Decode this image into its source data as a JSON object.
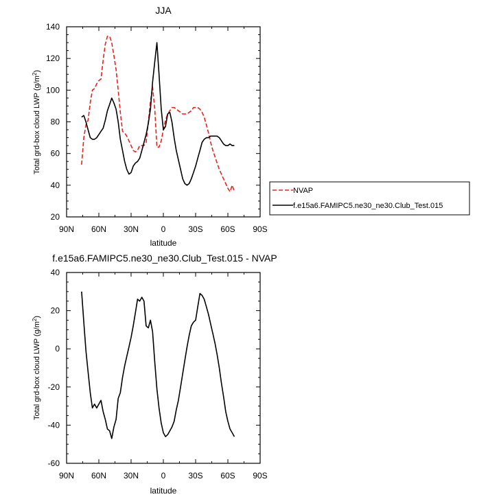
{
  "chart_data": [
    {
      "type": "line",
      "title": "JJA",
      "xlabel": "latitude",
      "ylabel_main": "Total grd-box cloud LWP (g/m",
      "ylabel_sup": "2",
      "ylabel_tail": ")",
      "xlim": [
        90,
        -90
      ],
      "ylim": [
        20,
        140
      ],
      "xticks": [
        90,
        60,
        30,
        0,
        -30,
        -60,
        -90
      ],
      "xtick_labels": [
        "90N",
        "60N",
        "30N",
        "0",
        "30S",
        "60S",
        "90S"
      ],
      "yticks": [
        20,
        40,
        60,
        80,
        100,
        120,
        140
      ],
      "ytick_labels": [
        "20",
        "40",
        "60",
        "80",
        "100",
        "120",
        "140"
      ],
      "legend_position": "right",
      "series": [
        {
          "name": "NVAP",
          "color": "#e8211c",
          "dash": "dashed",
          "x": [
            76,
            74,
            72,
            70,
            68,
            66,
            64,
            62,
            60,
            58,
            56,
            54,
            52,
            50,
            48,
            46,
            44,
            42,
            40,
            38,
            36,
            34,
            32,
            30,
            28,
            26,
            24,
            22,
            20,
            18,
            16,
            14,
            12,
            10,
            8,
            6,
            4,
            2,
            0,
            -2,
            -4,
            -6,
            -8,
            -10,
            -12,
            -14,
            -16,
            -18,
            -20,
            -22,
            -24,
            -26,
            -28,
            -30,
            -32,
            -34,
            -36,
            -38,
            -40,
            -42,
            -44,
            -46,
            -48,
            -50,
            -52,
            -54,
            -56,
            -58,
            -60,
            -62,
            -64,
            -66
          ],
          "y": [
            53,
            70,
            78,
            81,
            92,
            100,
            101,
            104,
            106,
            107,
            119,
            129,
            134,
            134,
            130,
            122,
            113,
            100,
            86,
            74,
            73,
            71,
            68,
            65,
            62,
            61,
            62,
            65,
            65,
            65,
            67,
            80,
            93,
            102,
            88,
            64,
            64,
            68,
            75,
            81,
            85,
            87,
            89,
            89,
            88,
            87,
            86,
            85,
            85,
            85,
            86,
            87,
            89,
            89,
            89,
            88,
            86,
            83,
            78,
            73,
            67,
            62,
            58,
            54,
            50,
            47,
            44,
            41,
            38,
            36,
            40,
            36
          ]
        },
        {
          "name": "f.e15a6.FAMIPC5.ne30_ne30.Club_Test.015",
          "color": "#000000",
          "dash": "solid",
          "x": [
            76,
            74,
            72,
            70,
            68,
            66,
            64,
            62,
            60,
            58,
            56,
            54,
            52,
            50,
            48,
            46,
            44,
            42,
            40,
            38,
            36,
            34,
            32,
            30,
            28,
            26,
            24,
            22,
            20,
            18,
            16,
            14,
            12,
            10,
            8,
            6,
            4,
            2,
            0,
            -2,
            -4,
            -6,
            -8,
            -10,
            -12,
            -14,
            -16,
            -18,
            -20,
            -22,
            -24,
            -26,
            -28,
            -30,
            -32,
            -34,
            -36,
            -38,
            -40,
            -42,
            -44,
            -46,
            -48,
            -50,
            -52,
            -54,
            -56,
            -58,
            -60,
            -62,
            -64,
            -66
          ],
          "y": [
            83,
            84,
            80,
            75,
            70,
            69,
            69,
            70,
            72,
            74,
            76,
            81,
            87,
            91,
            95,
            92,
            88,
            80,
            69,
            62,
            55,
            50,
            47,
            48,
            52,
            54,
            55,
            57,
            62,
            67,
            72,
            79,
            88,
            105,
            118,
            130,
            110,
            88,
            75,
            77,
            85,
            86,
            80,
            70,
            62,
            56,
            50,
            44,
            41,
            40,
            41,
            44,
            48,
            52,
            57,
            62,
            67,
            69,
            70,
            70,
            71,
            71,
            71,
            71,
            70,
            68,
            66,
            65,
            65,
            66,
            65,
            65
          ]
        }
      ]
    },
    {
      "type": "line",
      "title": "f.e15a6.FAMIPC5.ne30_ne30.Club_Test.015 - NVAP",
      "xlabel": "latitude",
      "ylabel_main": "Total grd-box cloud LWP (g/m",
      "ylabel_sup": "2",
      "ylabel_tail": ")",
      "xlim": [
        90,
        -90
      ],
      "ylim": [
        -60,
        40
      ],
      "xticks": [
        90,
        60,
        30,
        0,
        -30,
        -60,
        -90
      ],
      "xtick_labels": [
        "90N",
        "60N",
        "30N",
        "0",
        "30S",
        "60S",
        "90S"
      ],
      "yticks": [
        -60,
        -40,
        -20,
        0,
        20,
        40
      ],
      "ytick_labels": [
        "-60",
        "-40",
        "-20",
        "0",
        "20",
        "40"
      ],
      "series": [
        {
          "color": "#000000",
          "dash": "solid",
          "x": [
            76,
            74,
            72,
            70,
            68,
            66,
            64,
            62,
            60,
            58,
            56,
            54,
            52,
            50,
            48,
            46,
            44,
            42,
            40,
            38,
            36,
            34,
            32,
            30,
            28,
            26,
            24,
            22,
            20,
            18,
            16,
            14,
            12,
            10,
            8,
            6,
            4,
            2,
            0,
            -2,
            -4,
            -6,
            -8,
            -10,
            -12,
            -14,
            -16,
            -18,
            -20,
            -22,
            -24,
            -26,
            -28,
            -30,
            -32,
            -34,
            -36,
            -38,
            -40,
            -42,
            -44,
            -46,
            -48,
            -50,
            -52,
            -54,
            -56,
            -58,
            -60,
            -62,
            -64,
            -66
          ],
          "y": [
            30,
            14,
            -1,
            -12,
            -23,
            -31,
            -29,
            -31,
            -29,
            -27,
            -33,
            -37,
            -42,
            -43,
            -47,
            -41,
            -37,
            -26,
            -23,
            -15,
            -9,
            -4,
            1,
            6,
            12,
            19,
            26,
            25,
            27,
            25,
            12,
            11,
            15,
            9,
            -7,
            -21,
            -31,
            -39,
            -44,
            -46,
            -45,
            -43,
            -41,
            -38,
            -32,
            -27,
            -20,
            -13,
            -6,
            1,
            7,
            12,
            14,
            15,
            22,
            29,
            28,
            26,
            22,
            18,
            13,
            8,
            3,
            -3,
            -10,
            -18,
            -25,
            -33,
            -38,
            -42,
            -44,
            -46
          ]
        }
      ]
    }
  ]
}
